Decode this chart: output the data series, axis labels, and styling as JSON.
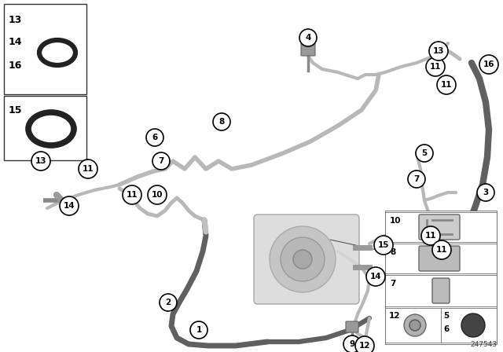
{
  "bg_color": "#ffffff",
  "part_number": "247543",
  "c_silver": "#b8b8b8",
  "c_dark": "#555555",
  "c_flex": "#606060",
  "lw_silver": 3.0,
  "lw_flex": 5.0,
  "lw_dark": 4.5
}
